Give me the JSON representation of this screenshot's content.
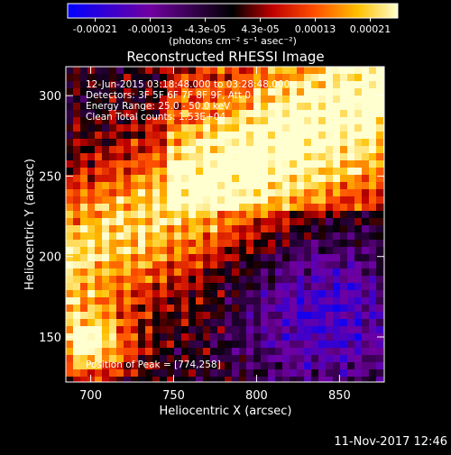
{
  "page": {
    "footer_timestamp": "11-Nov-2017 12:46"
  },
  "colorbar": {
    "tick_labels": [
      "-0.00021",
      "-0.00013",
      "-4.3e-05",
      "4.3e-05",
      "0.00013",
      "0.00021"
    ],
    "unit_label": "(photons cm⁻² s⁻¹ asec⁻²)",
    "range": [
      -0.00021,
      0.00021
    ]
  },
  "chart_data": {
    "type": "heatmap",
    "title": "Reconstructed RHESSI Image",
    "xlabel": "Heliocentric X (arcsec)",
    "ylabel": "Heliocentric Y (arcsec)",
    "xlim": [
      685,
      877
    ],
    "ylim": [
      122,
      318
    ],
    "x_ticks": [
      700,
      750,
      800,
      850
    ],
    "y_ticks": [
      150,
      200,
      250,
      300
    ],
    "annotations": [
      "12-Jun-2015 03:18:48.000 to 03:28:48.000",
      "Detectors: 3F 5F 6F 7F 8F 9F, Att 0",
      "Energy Range: 25.0 - 50.0 keV",
      "Clean     Total counts: 1.53E+04"
    ],
    "peak_label": "Position of Peak = [774,258]",
    "peak_position": [
      774,
      258
    ],
    "colormap": [
      {
        "stop": 0.0,
        "color": "#0000ff"
      },
      {
        "stop": 0.25,
        "color": "#7000a0"
      },
      {
        "stop": 0.5,
        "color": "#000000"
      },
      {
        "stop": 0.62,
        "color": "#c00000"
      },
      {
        "stop": 0.75,
        "color": "#ff5000"
      },
      {
        "stop": 0.88,
        "color": "#ffc000"
      },
      {
        "stop": 1.0,
        "color": "#ffffd0"
      }
    ]
  }
}
